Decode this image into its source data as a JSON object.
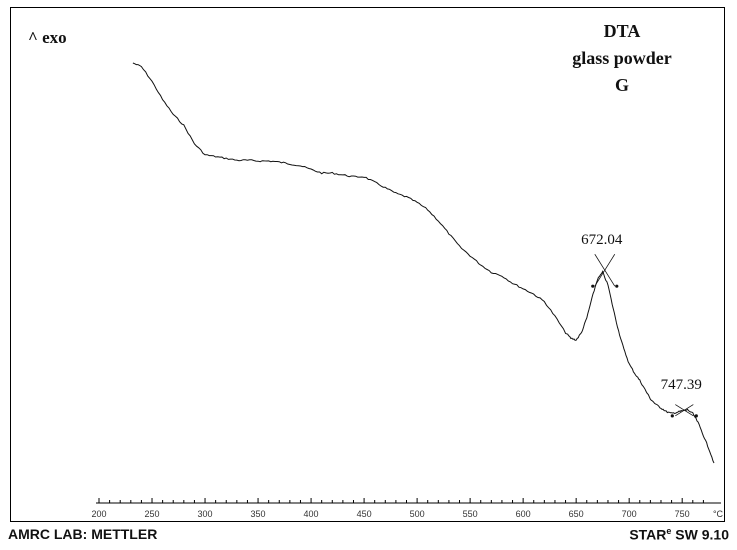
{
  "chart_data": {
    "type": "line",
    "y_marker": "^ exo",
    "title_lines": [
      "DTA",
      "glass powder",
      "G"
    ],
    "x_unit": "°C",
    "xlim": [
      200,
      780
    ],
    "x_ticks": [
      200,
      250,
      300,
      350,
      400,
      450,
      500,
      550,
      600,
      650,
      700,
      750
    ],
    "series": [
      {
        "x": [
          232,
          240,
          250,
          260,
          270,
          280,
          290,
          300,
          310,
          320,
          330,
          340,
          350,
          360,
          370,
          380,
          390,
          400,
          410,
          420,
          430,
          440,
          450,
          460,
          470,
          480,
          490,
          500,
          510,
          520,
          530,
          540,
          550,
          560,
          570,
          580,
          590,
          600,
          610,
          620,
          630,
          640,
          645,
          650,
          655,
          660,
          665,
          670,
          675,
          680,
          685,
          690,
          695,
          700,
          705,
          710,
          715,
          720,
          725,
          730,
          735,
          740,
          745,
          750,
          755,
          760,
          765,
          770,
          775,
          780
        ],
        "y": [
          10,
          9.9,
          9.5,
          9.0,
          8.6,
          8.3,
          7.8,
          7.5,
          7.45,
          7.4,
          7.35,
          7.35,
          7.33,
          7.33,
          7.3,
          7.25,
          7.2,
          7.1,
          7.0,
          7.0,
          6.95,
          6.9,
          6.9,
          6.75,
          6.6,
          6.45,
          6.35,
          6.2,
          6.0,
          5.7,
          5.35,
          5.0,
          4.75,
          4.5,
          4.3,
          4.2,
          4.0,
          3.85,
          3.7,
          3.5,
          3.1,
          2.65,
          2.5,
          2.45,
          2.65,
          3.05,
          3.6,
          4.1,
          4.3,
          3.95,
          3.3,
          2.7,
          2.2,
          1.8,
          1.55,
          1.35,
          1.1,
          0.85,
          0.7,
          0.6,
          0.5,
          0.45,
          0.48,
          0.52,
          0.55,
          0.45,
          0.2,
          -0.15,
          -0.5,
          -0.9
        ]
      }
    ],
    "annotations": [
      {
        "label": "672.04",
        "x": 677,
        "y": 4.3
      },
      {
        "label": "747.39",
        "x": 752,
        "y": 0.52
      }
    ]
  },
  "footer": {
    "left": "AMRC LAB: METTLER",
    "right_prefix": "STAR",
    "right_sup": "e",
    "right_suffix": " SW 9.10"
  }
}
